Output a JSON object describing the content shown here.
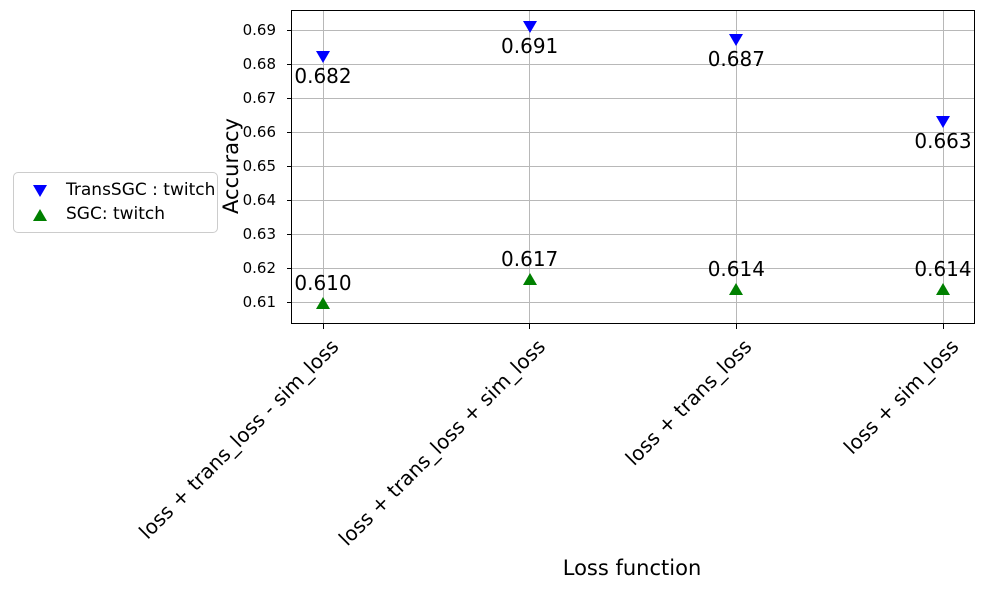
{
  "chart_data": {
    "type": "scatter",
    "xlabel": "Loss function",
    "ylabel": "Accuracy",
    "categories": [
      "loss + trans_loss - sim_loss",
      "loss + trans_loss + sim_loss",
      "loss + trans_loss",
      "loss + sim_loss"
    ],
    "series": [
      {
        "name": "TransSGC : twitch",
        "marker": "triangle-down",
        "color": "#0000ff",
        "values": [
          0.682,
          0.691,
          0.687,
          0.663
        ],
        "annotations": [
          "0.682",
          "0.691",
          "0.687",
          "0.663"
        ],
        "annotation_side": "below"
      },
      {
        "name": "SGC: twitch",
        "marker": "triangle-up",
        "color": "#008000",
        "values": [
          0.61,
          0.617,
          0.614,
          0.614
        ],
        "annotations": [
          "0.610",
          "0.617",
          "0.614",
          "0.614"
        ],
        "annotation_side": "above"
      }
    ],
    "y_ticks": [
      0.61,
      0.62,
      0.63,
      0.64,
      0.65,
      0.66,
      0.67,
      0.68,
      0.69
    ],
    "y_tick_labels": [
      "0.61",
      "0.62",
      "0.63",
      "0.64",
      "0.65",
      "0.66",
      "0.67",
      "0.68",
      "0.69"
    ],
    "ylim": [
      0.604,
      0.6956
    ],
    "xlim": [
      -0.15,
      3.15
    ],
    "grid": true,
    "grid_color": "#b8b8b8",
    "axis_color": "#000000",
    "legend_position": "outside-left",
    "legend_border_color": "#cccccc"
  }
}
